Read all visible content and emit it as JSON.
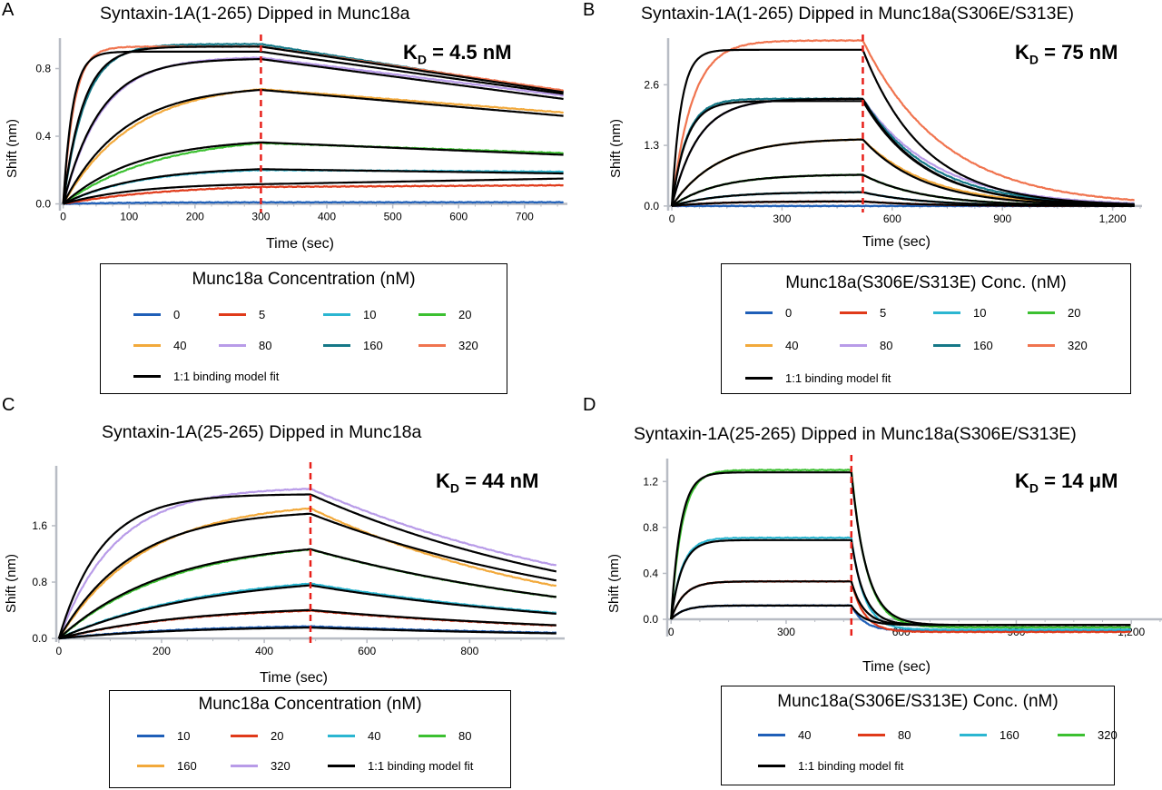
{
  "colors": {
    "c0": "#1f5fb8",
    "c5": "#e03a1a",
    "c10": "#2bb6d1",
    "c20": "#3cc031",
    "c40": "#f2a93b",
    "c80": "#b89be8",
    "c160": "#157887",
    "c320": "#f0744f",
    "fit": "#000000",
    "dissociation_marker": "#e8201a",
    "axis": "#b8bcc4"
  },
  "chart_data": [
    {
      "panel": "A",
      "type": "line",
      "title": "Syntaxin-1A(1-265) Dipped in Munc18a",
      "kd_label": "K",
      "kd_sub": "D",
      "kd_value": " = 4.5 nM",
      "xlabel": "Time (sec)",
      "ylabel": "Shift (nm)",
      "xlim": [
        -5,
        765
      ],
      "ylim": [
        -0.04,
        0.98
      ],
      "xticks": [
        0,
        100,
        200,
        300,
        400,
        500,
        600,
        700
      ],
      "xtick_labels": [
        "0",
        "100",
        "200",
        "300",
        "400",
        "500",
        "600",
        "700"
      ],
      "yticks": [
        0.0,
        0.4,
        0.8
      ],
      "ytick_labels": [
        "0.0",
        "0.4",
        "0.8"
      ],
      "dissociation_start": 300,
      "x_end": 760,
      "series": [
        {
          "name": "0",
          "color": "c0",
          "plateau": 0.01,
          "k_on": 0.01,
          "end_value": 0.01
        },
        {
          "name": "5",
          "color": "c5",
          "plateau": 0.12,
          "k_on": 0.006,
          "end_value": 0.11
        },
        {
          "name": "10",
          "color": "c10",
          "plateau": 0.215,
          "k_on": 0.009,
          "end_value": 0.19
        },
        {
          "name": "20",
          "color": "c20",
          "plateau": 0.41,
          "k_on": 0.007,
          "end_value": 0.3
        },
        {
          "name": "40",
          "color": "c40",
          "plateau": 0.72,
          "k_on": 0.0095,
          "end_value": 0.54
        },
        {
          "name": "80",
          "color": "c80",
          "plateau": 0.87,
          "k_on": 0.017,
          "end_value": 0.64
        },
        {
          "name": "160",
          "color": "c160",
          "plateau": 0.945,
          "k_on": 0.03,
          "end_value": 0.66
        },
        {
          "name": "320",
          "color": "c320",
          "plateau": 0.93,
          "k_on": 0.06,
          "end_value": 0.67
        }
      ],
      "fits": [
        {
          "plateau": 0.125,
          "k_on": 0.009,
          "end_value": 0.15
        },
        {
          "plateau": 0.22,
          "k_on": 0.009,
          "end_value": 0.18
        },
        {
          "plateau": 0.39,
          "k_on": 0.009,
          "end_value": 0.29
        },
        {
          "plateau": 0.7,
          "k_on": 0.011,
          "end_value": 0.52
        },
        {
          "plateau": 0.86,
          "k_on": 0.018,
          "end_value": 0.62
        },
        {
          "plateau": 0.9,
          "k_on": 0.07,
          "end_value": 0.65
        },
        {
          "plateau": 0.93,
          "k_on": 0.033,
          "end_value": 0.66
        }
      ],
      "legend": {
        "title": "Munc18a Concentration (nM)",
        "entries": [
          "0",
          "5",
          "10",
          "20",
          "40",
          "80",
          "160",
          "320"
        ],
        "entry_colors": [
          "c0",
          "c5",
          "c10",
          "c20",
          "c40",
          "c80",
          "c160",
          "c320"
        ],
        "fit_label": "1:1 binding model fit"
      }
    },
    {
      "panel": "B",
      "type": "line",
      "title": "Syntaxin-1A(1-265) Dipped in Munc18a(S306E/S313E)",
      "kd_label": "K",
      "kd_sub": "D",
      "kd_value": " = 75 nM",
      "xlabel": "Time (sec)",
      "ylabel": "Shift (nm)",
      "xlim": [
        -10,
        1280
      ],
      "ylim": [
        -0.1,
        3.6
      ],
      "xticks": [
        0,
        300,
        600,
        900,
        1200
      ],
      "xtick_labels": [
        "0",
        "300",
        "600",
        "900",
        "1,200"
      ],
      "yticks": [
        0.0,
        1.3,
        2.6
      ],
      "ytick_labels": [
        "0.0",
        "1.3",
        "2.6"
      ],
      "dissociation_start": 520,
      "x_end": 1260,
      "series": [
        {
          "name": "0",
          "color": "c0",
          "plateau": 0.0,
          "k_on": 0.01,
          "k_off": 0.006
        },
        {
          "name": "5",
          "color": "c5",
          "plateau": 0.1,
          "k_on": 0.008,
          "k_off": 0.006
        },
        {
          "name": "10",
          "color": "c10",
          "plateau": 0.3,
          "k_on": 0.008,
          "k_off": 0.006
        },
        {
          "name": "20",
          "color": "c20",
          "plateau": 0.68,
          "k_on": 0.008,
          "k_off": 0.006
        },
        {
          "name": "40",
          "color": "c40",
          "plateau": 1.45,
          "k_on": 0.008,
          "k_off": 0.0055
        },
        {
          "name": "80",
          "color": "c80",
          "plateau": 2.3,
          "k_on": 0.014,
          "k_off": 0.005
        },
        {
          "name": "160",
          "color": "c160",
          "plateau": 2.3,
          "k_on": 0.025,
          "k_off": 0.0055
        },
        {
          "name": "320",
          "color": "c320",
          "plateau": 3.55,
          "k_on": 0.018,
          "k_off": 0.0045
        }
      ],
      "fits": [
        {
          "plateau": 0.1,
          "k_on": 0.008,
          "k_off": 0.006
        },
        {
          "plateau": 0.3,
          "k_on": 0.008,
          "k_off": 0.006
        },
        {
          "plateau": 0.68,
          "k_on": 0.008,
          "k_off": 0.006
        },
        {
          "plateau": 1.45,
          "k_on": 0.008,
          "k_off": 0.006
        },
        {
          "plateau": 2.3,
          "k_on": 0.014,
          "k_off": 0.006
        },
        {
          "plateau": 2.25,
          "k_on": 0.025,
          "k_off": 0.006
        },
        {
          "plateau": 3.35,
          "k_on": 0.04,
          "k_off": 0.006
        }
      ],
      "legend": {
        "title": "Munc18a(S306E/S313E) Conc. (nM)",
        "entries": [
          "0",
          "5",
          "10",
          "20",
          "40",
          "80",
          "160",
          "320"
        ],
        "entry_colors": [
          "c0",
          "c5",
          "c10",
          "c20",
          "c40",
          "c80",
          "c160",
          "c320"
        ],
        "fit_label": "1:1 binding model fit"
      }
    },
    {
      "panel": "C",
      "type": "line",
      "title": "Syntaxin-1A(25-265) Dipped in Munc18a",
      "kd_label": "K",
      "kd_sub": "D",
      "kd_value": " = 44 nM",
      "xlabel": "Time (sec)",
      "ylabel": "Shift (nm)",
      "xlim": [
        -5,
        985
      ],
      "ylim": [
        -0.05,
        2.45
      ],
      "xticks": [
        0,
        200,
        400,
        600,
        800
      ],
      "xtick_labels": [
        "0",
        "200",
        "400",
        "600",
        "800"
      ],
      "yticks": [
        0.0,
        0.8,
        1.6
      ],
      "ytick_labels": [
        "0.0",
        "0.8",
        "1.6"
      ],
      "dissociation_start": 490,
      "x_end": 970,
      "series": [
        {
          "name": "10",
          "color": "c0",
          "plateau": 0.2,
          "k_on": 0.004,
          "k_off": 0.0016
        },
        {
          "name": "20",
          "color": "c5",
          "plateau": 0.46,
          "k_on": 0.004,
          "k_off": 0.0016
        },
        {
          "name": "40",
          "color": "c10",
          "plateau": 0.95,
          "k_on": 0.0035,
          "k_off": 0.0016
        },
        {
          "name": "80",
          "color": "c20",
          "plateau": 1.42,
          "k_on": 0.0045,
          "k_off": 0.0016
        },
        {
          "name": "160",
          "color": "c40",
          "plateau": 1.95,
          "k_on": 0.006,
          "k_off": 0.0019
        },
        {
          "name": "320",
          "color": "c80",
          "plateau": 2.15,
          "k_on": 0.009,
          "k_off": 0.0015
        }
      ],
      "fits": [
        {
          "plateau": 0.18,
          "k_on": 0.004,
          "k_off": 0.0016
        },
        {
          "plateau": 0.47,
          "k_on": 0.004,
          "k_off": 0.0016
        },
        {
          "plateau": 0.92,
          "k_on": 0.0035,
          "k_off": 0.0016
        },
        {
          "plateau": 1.4,
          "k_on": 0.0048,
          "k_off": 0.0016
        },
        {
          "plateau": 1.83,
          "k_on": 0.007,
          "k_off": 0.0016
        },
        {
          "plateau": 2.05,
          "k_on": 0.012,
          "k_off": 0.0016
        }
      ],
      "legend": {
        "title": "Munc18a Concentration (nM)",
        "entries": [
          "10",
          "20",
          "40",
          "80",
          "160",
          "320"
        ],
        "entry_colors": [
          "c0",
          "c5",
          "c10",
          "c20",
          "c40",
          "c80"
        ],
        "fit_label": "1:1 binding model fit"
      }
    },
    {
      "panel": "D",
      "type": "line",
      "title": "Syntaxin-1A(25-265) Dipped in Munc18a(S306E/S313E)",
      "kd_label": "K",
      "kd_sub": "D",
      "kd_value": " = 14 μM",
      "xlabel": "Time (sec)",
      "ylabel": "Shift (nm)",
      "xlim": [
        -10,
        1280
      ],
      "ylim": [
        -0.15,
        1.4
      ],
      "xticks": [
        0,
        300,
        600,
        900,
        1200
      ],
      "xtick_labels": [
        "0",
        "300",
        "600",
        "900",
        "1,200"
      ],
      "yticks": [
        0.0,
        0.4,
        0.8,
        1.2
      ],
      "ytick_labels": [
        "0.0",
        "0.4",
        "0.8",
        "1.2"
      ],
      "dissociation_start": 470,
      "x_end": 1200,
      "series": [
        {
          "name": "40",
          "color": "c0",
          "plateau": 0.12,
          "k_on": 0.03,
          "k_off": 0.03,
          "baseline_end": -0.1
        },
        {
          "name": "80",
          "color": "c5",
          "plateau": 0.33,
          "k_on": 0.03,
          "k_off": 0.03,
          "baseline_end": -0.11
        },
        {
          "name": "160",
          "color": "c10",
          "plateau": 0.71,
          "k_on": 0.035,
          "k_off": 0.03,
          "baseline_end": -0.09
        },
        {
          "name": "320",
          "color": "c20",
          "plateau": 1.3,
          "k_on": 0.035,
          "k_off": 0.025,
          "baseline_end": -0.07
        }
      ],
      "fits": [
        {
          "plateau": 0.12,
          "k_on": 0.03,
          "k_off": 0.03,
          "baseline_end": -0.05
        },
        {
          "plateau": 0.33,
          "k_on": 0.03,
          "k_off": 0.03,
          "baseline_end": -0.05
        },
        {
          "plateau": 0.69,
          "k_on": 0.035,
          "k_off": 0.03,
          "baseline_end": -0.05
        },
        {
          "plateau": 1.28,
          "k_on": 0.04,
          "k_off": 0.025,
          "baseline_end": -0.05
        }
      ],
      "legend": {
        "title": "Munc18a(S306E/S313E) Conc. (nM)",
        "entries": [
          "40",
          "80",
          "160",
          "320"
        ],
        "entry_colors": [
          "c0",
          "c5",
          "c10",
          "c20"
        ],
        "fit_label": "1:1 binding model fit"
      }
    }
  ]
}
